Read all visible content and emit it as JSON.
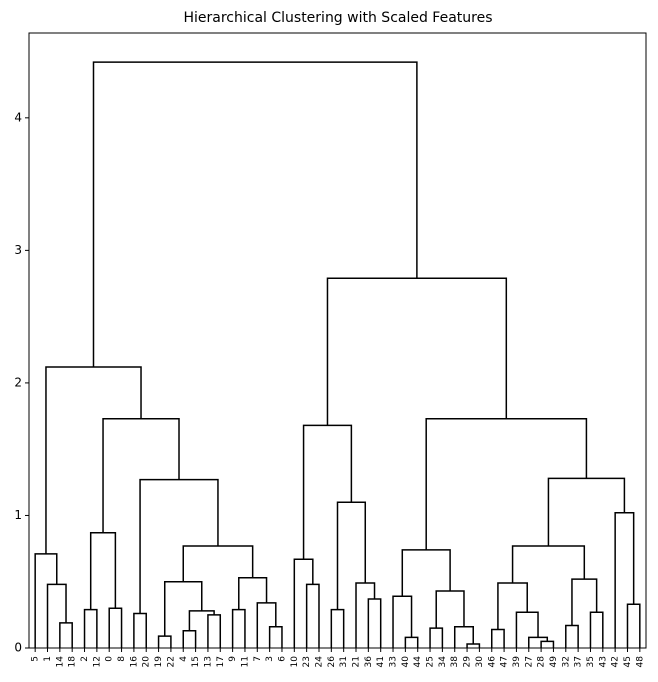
{
  "chart_data": {
    "type": "dendrogram",
    "title": "Hierarchical Clustering with Scaled Features",
    "leaves": [
      "5",
      "1",
      "14",
      "18",
      "2",
      "12",
      "0",
      "8",
      "16",
      "20",
      "19",
      "22",
      "4",
      "15",
      "13",
      "17",
      "9",
      "11",
      "7",
      "3",
      "6",
      "10",
      "23",
      "24",
      "26",
      "31",
      "21",
      "36",
      "41",
      "33",
      "40",
      "44",
      "25",
      "34",
      "38",
      "29",
      "30",
      "46",
      "47",
      "39",
      "27",
      "28",
      "49",
      "32",
      "37",
      "35",
      "43",
      "42",
      "45",
      "48"
    ],
    "merges": [
      [
        2,
        3,
        0.19
      ],
      [
        1,
        50,
        0.48
      ],
      [
        0,
        51,
        0.71
      ],
      [
        4,
        5,
        0.29
      ],
      [
        6,
        7,
        0.3
      ],
      [
        53,
        54,
        0.87
      ],
      [
        8,
        9,
        0.26
      ],
      [
        10,
        11,
        0.09
      ],
      [
        12,
        13,
        0.13
      ],
      [
        14,
        15,
        0.25
      ],
      [
        58,
        59,
        0.28
      ],
      [
        57,
        60,
        0.5
      ],
      [
        16,
        17,
        0.29
      ],
      [
        19,
        20,
        0.16
      ],
      [
        18,
        63,
        0.34
      ],
      [
        62,
        64,
        0.53
      ],
      [
        61,
        65,
        0.77
      ],
      [
        56,
        66,
        1.27
      ],
      [
        55,
        67,
        1.73
      ],
      [
        52,
        68,
        2.12
      ],
      [
        22,
        23,
        0.48
      ],
      [
        21,
        70,
        0.67
      ],
      [
        24,
        25,
        0.29
      ],
      [
        27,
        28,
        0.37
      ],
      [
        26,
        73,
        0.49
      ],
      [
        72,
        74,
        1.1
      ],
      [
        71,
        75,
        1.68
      ],
      [
        30,
        31,
        0.08
      ],
      [
        29,
        77,
        0.39
      ],
      [
        32,
        33,
        0.15
      ],
      [
        35,
        36,
        0.03
      ],
      [
        34,
        80,
        0.16
      ],
      [
        79,
        81,
        0.43
      ],
      [
        78,
        82,
        0.74
      ],
      [
        37,
        38,
        0.14
      ],
      [
        41,
        42,
        0.05
      ],
      [
        40,
        85,
        0.08
      ],
      [
        39,
        86,
        0.27
      ],
      [
        84,
        87,
        0.49
      ],
      [
        43,
        44,
        0.17
      ],
      [
        45,
        46,
        0.27
      ],
      [
        89,
        90,
        0.52
      ],
      [
        88,
        91,
        0.77
      ],
      [
        48,
        49,
        0.33
      ],
      [
        47,
        93,
        1.02
      ],
      [
        92,
        94,
        1.28
      ],
      [
        83,
        95,
        1.73
      ],
      [
        76,
        96,
        2.79
      ],
      [
        69,
        97,
        4.42
      ]
    ],
    "color": "#000000",
    "ylim": [
      0,
      4.64
    ],
    "yticks": [
      0,
      1,
      2,
      3,
      4
    ]
  }
}
